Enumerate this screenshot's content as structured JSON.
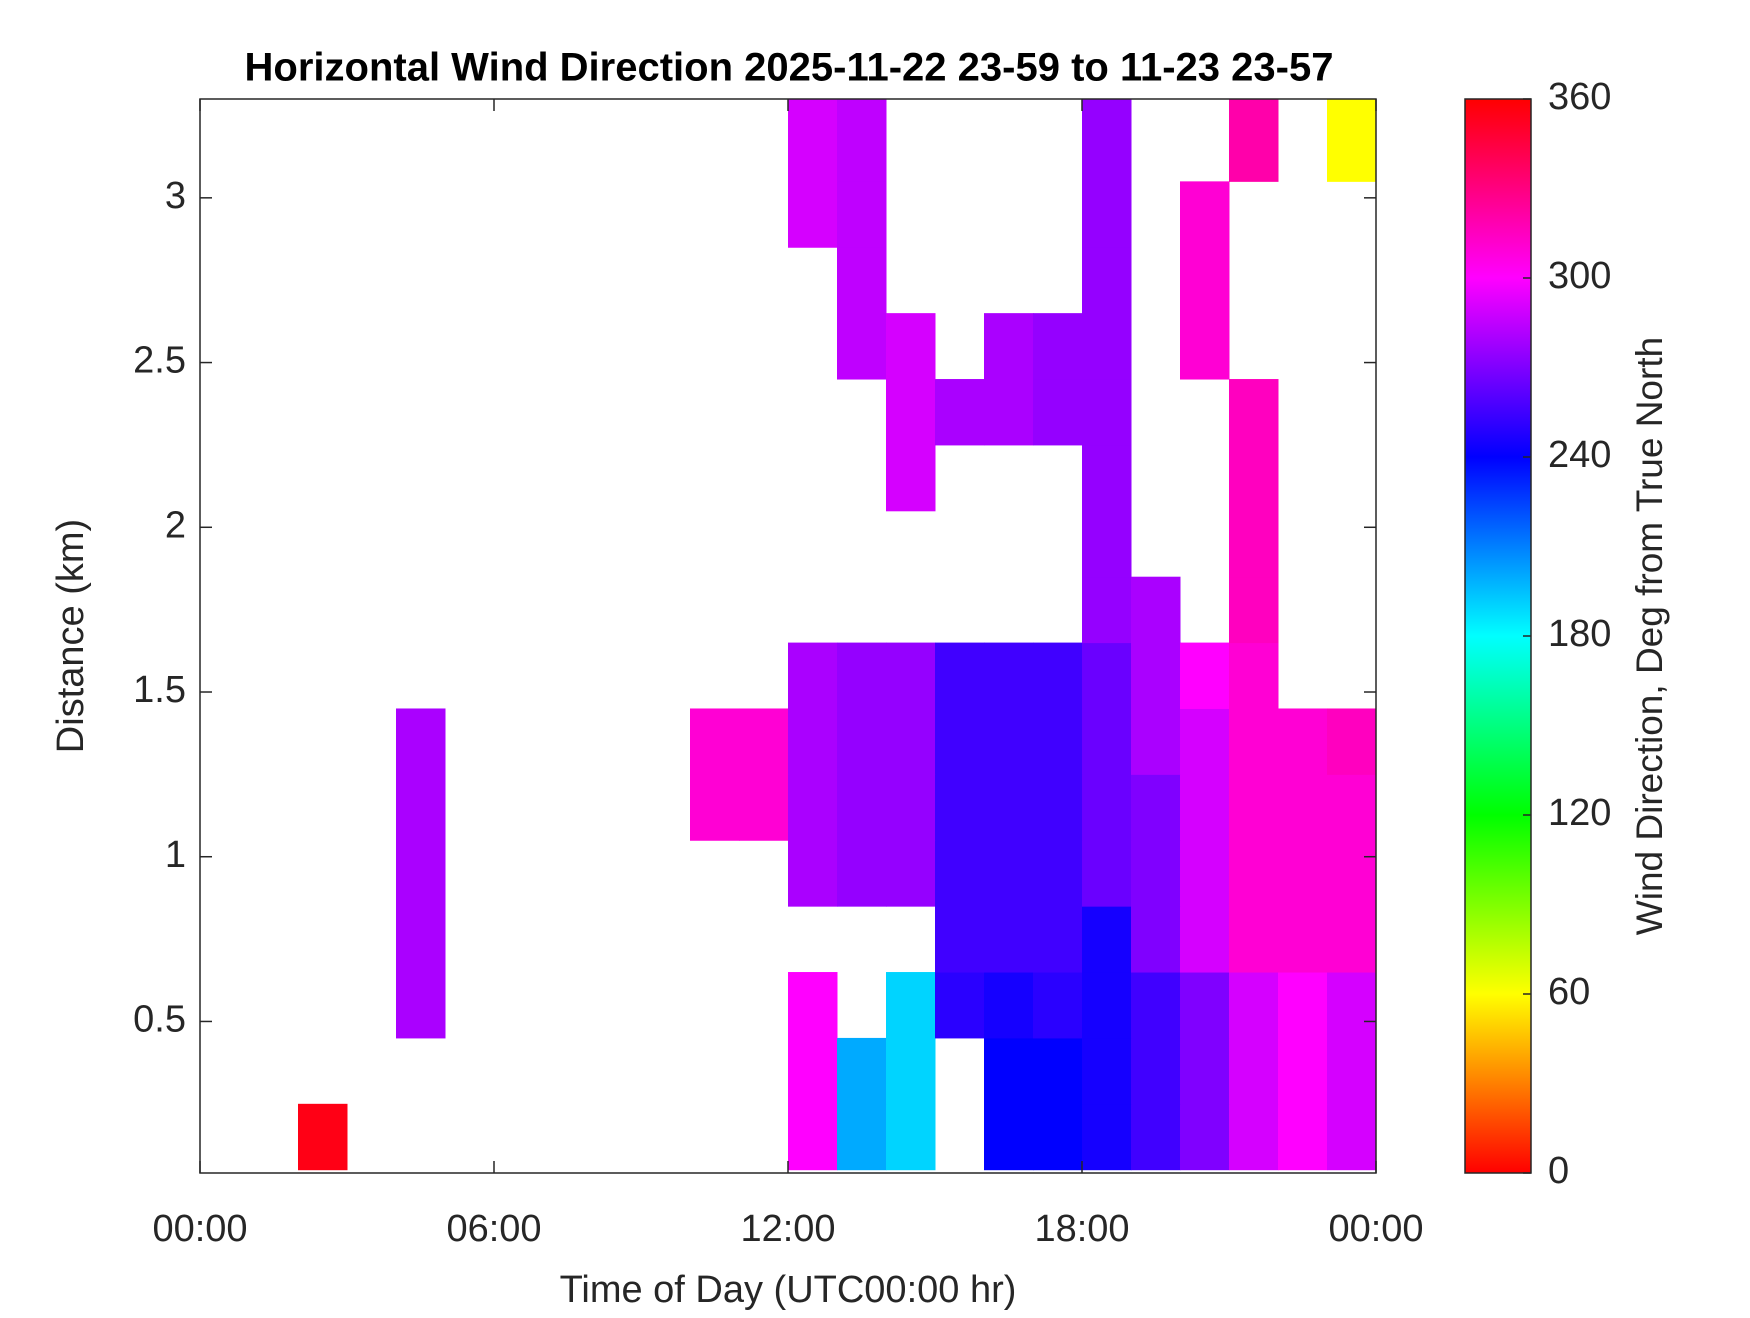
{
  "chart_data": {
    "type": "heatmap",
    "title": "Horizontal Wind Direction 2025-11-22 23-59 to 11-23 23-57",
    "xlabel": "Time of Day (UTC00:00 hr)",
    "ylabel": "Distance (km)",
    "colorbar_label": "Wind Direction, Deg from True North",
    "xlim": [
      0,
      24
    ],
    "xticks": [
      {
        "value": 0,
        "label": "00:00"
      },
      {
        "value": 6,
        "label": "06:00"
      },
      {
        "value": 12,
        "label": "12:00"
      },
      {
        "value": 18,
        "label": "18:00"
      },
      {
        "value": 24,
        "label": "00:00"
      }
    ],
    "ylim": [
      0.04,
      3.3
    ],
    "yticks": [
      0.5,
      1,
      1.5,
      2,
      2.5,
      3
    ],
    "clim": [
      0,
      360
    ],
    "cticks": [
      0,
      60,
      120,
      180,
      240,
      300,
      360
    ],
    "colormap": [
      "#ff0000",
      "#ffff00",
      "#00ff00",
      "#00ffff",
      "#0000ff",
      "#ff00ff",
      "#ff0000"
    ],
    "x_edges": [
      0,
      1,
      2,
      3,
      4,
      5,
      6,
      7,
      8,
      9,
      10,
      11,
      12,
      13,
      14,
      15,
      16,
      17,
      18,
      19,
      20,
      21,
      22,
      23,
      24
    ],
    "y_edges": [
      0.05,
      0.25,
      0.45,
      0.65,
      0.85,
      1.05,
      1.25,
      1.45,
      1.65,
      1.85,
      2.05,
      2.25,
      2.45,
      2.65,
      2.85,
      3.05,
      3.3
    ],
    "z": [
      [
        null,
        null,
        355,
        null,
        null,
        null,
        null,
        null,
        null,
        null,
        null,
        null,
        300,
        200,
        190,
        null,
        240,
        240,
        245,
        255,
        270,
        290,
        300,
        290
      ],
      [
        null,
        null,
        null,
        null,
        null,
        null,
        null,
        null,
        null,
        null,
        null,
        null,
        300,
        200,
        190,
        null,
        240,
        240,
        245,
        255,
        270,
        290,
        300,
        290
      ],
      [
        null,
        null,
        null,
        null,
        280,
        null,
        null,
        null,
        null,
        null,
        null,
        null,
        300,
        null,
        190,
        250,
        245,
        250,
        245,
        255,
        270,
        290,
        300,
        290
      ],
      [
        null,
        null,
        null,
        null,
        280,
        null,
        null,
        null,
        null,
        null,
        null,
        null,
        null,
        null,
        null,
        255,
        255,
        255,
        245,
        270,
        290,
        310,
        310,
        310
      ],
      [
        null,
        null,
        null,
        null,
        280,
        null,
        null,
        null,
        null,
        null,
        null,
        null,
        280,
        275,
        275,
        255,
        255,
        255,
        265,
        270,
        290,
        310,
        310,
        310
      ],
      [
        null,
        null,
        null,
        null,
        280,
        null,
        null,
        null,
        null,
        null,
        310,
        310,
        280,
        275,
        275,
        255,
        255,
        255,
        265,
        270,
        290,
        310,
        310,
        310
      ],
      [
        null,
        null,
        null,
        null,
        280,
        null,
        null,
        null,
        null,
        null,
        310,
        310,
        280,
        275,
        275,
        255,
        255,
        255,
        265,
        280,
        290,
        310,
        310,
        315
      ],
      [
        null,
        null,
        null,
        null,
        null,
        null,
        null,
        null,
        null,
        null,
        null,
        null,
        280,
        275,
        275,
        255,
        255,
        255,
        265,
        280,
        300,
        310,
        null,
        null
      ],
      [
        null,
        null,
        null,
        null,
        null,
        null,
        null,
        null,
        null,
        null,
        null,
        null,
        null,
        null,
        null,
        null,
        null,
        null,
        275,
        280,
        null,
        315,
        null,
        null
      ],
      [
        null,
        null,
        null,
        null,
        null,
        null,
        null,
        null,
        null,
        null,
        null,
        null,
        null,
        null,
        null,
        null,
        null,
        null,
        275,
        null,
        null,
        315,
        null,
        null
      ],
      [
        null,
        null,
        null,
        null,
        null,
        null,
        null,
        null,
        null,
        null,
        null,
        null,
        null,
        null,
        290,
        null,
        null,
        null,
        275,
        null,
        null,
        315,
        null,
        null
      ],
      [
        null,
        null,
        null,
        null,
        null,
        null,
        null,
        null,
        null,
        null,
        null,
        null,
        null,
        null,
        290,
        280,
        280,
        275,
        275,
        null,
        null,
        315,
        null,
        null
      ],
      [
        null,
        null,
        null,
        null,
        null,
        null,
        null,
        null,
        null,
        null,
        null,
        null,
        null,
        285,
        290,
        null,
        280,
        275,
        275,
        null,
        310,
        null,
        null,
        null
      ],
      [
        null,
        null,
        null,
        null,
        null,
        null,
        null,
        null,
        null,
        null,
        null,
        null,
        null,
        285,
        null,
        null,
        null,
        null,
        275,
        null,
        310,
        null,
        null,
        null
      ],
      [
        null,
        null,
        null,
        null,
        null,
        null,
        null,
        null,
        null,
        null,
        null,
        null,
        290,
        285,
        null,
        null,
        null,
        null,
        275,
        null,
        310,
        null,
        null,
        null
      ],
      [
        null,
        null,
        null,
        null,
        null,
        null,
        null,
        null,
        null,
        null,
        null,
        null,
        290,
        285,
        null,
        null,
        null,
        null,
        275,
        null,
        null,
        320,
        null,
        60
      ]
    ]
  }
}
